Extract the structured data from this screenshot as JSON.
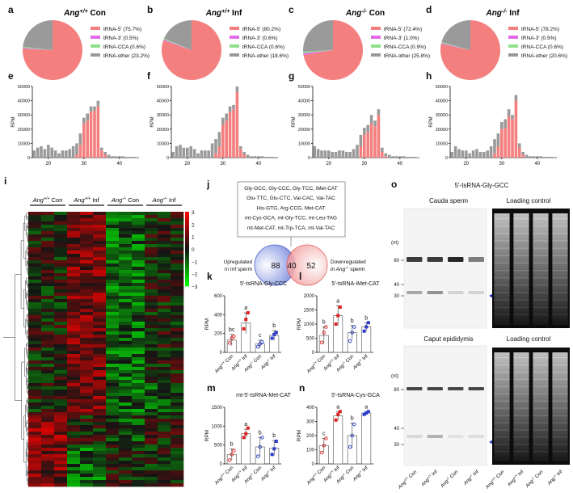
{
  "panel_letters": [
    "a",
    "b",
    "c",
    "d",
    "e",
    "f",
    "g",
    "h",
    "i",
    "j",
    "k",
    "l",
    "m",
    "n",
    "o"
  ],
  "colors": {
    "trna5": "#f47f7f",
    "trna3": "#e26ae6",
    "trnaCCA": "#8fe08a",
    "trnaOther": "#9a9a9a",
    "blue": "#2a3cc9",
    "red": "#e02020",
    "venn_left": "#7d8fe0",
    "venn_right": "#f39a9a"
  },
  "pies": [
    {
      "title_prefix": "Ang",
      "title_sup": "+/+",
      "title_suffix": " Con",
      "legend": [
        "tRNA-5' (75.7%)",
        "tRNA-3' (0.5%)",
        "tRNA-CCA (0.6%)",
        "tRNA-other (23.2%)"
      ],
      "values": [
        75.7,
        0.5,
        0.6,
        23.2
      ]
    },
    {
      "title_prefix": "Ang",
      "title_sup": "+/+",
      "title_suffix": " Inf",
      "legend": [
        "tRNA-5' (80.2%)",
        "tRNA-3' (0.6%)",
        "tRNA-CCA (0.6%)",
        "tRNA-other (18.6%)"
      ],
      "values": [
        80.2,
        0.6,
        0.6,
        18.6
      ]
    },
    {
      "title_prefix": "Ang",
      "title_sup": "-/-",
      "title_suffix": " Con",
      "legend": [
        "tRNA-5' (72.4%)",
        "tRNA-3' (1.0%)",
        "tRNA-CCA (0.9%)",
        "tRNA-other (25.8%)"
      ],
      "values": [
        72.4,
        1.0,
        0.9,
        25.8
      ]
    },
    {
      "title_prefix": "Ang",
      "title_sup": "-/-",
      "title_suffix": " Inf",
      "legend": [
        "tRNA-5' (78.2%)",
        "tRNA-3' (0.5%)",
        "tRNA-CCA (0.6%)",
        "tRNA-other (20.6%)"
      ],
      "values": [
        78.2,
        0.5,
        0.6,
        20.6
      ]
    }
  ],
  "hist": {
    "ylabel": "RPM",
    "yticks": [
      "0",
      "10000",
      "20000",
      "30000",
      "40000",
      "50000"
    ],
    "xticks": [
      "20",
      "30",
      "40"
    ],
    "lengths": [
      16,
      17,
      18,
      19,
      20,
      21,
      22,
      23,
      24,
      25,
      26,
      27,
      28,
      29,
      30,
      31,
      32,
      33,
      34,
      35,
      36,
      37,
      38,
      39,
      40,
      41,
      42,
      43,
      44,
      45
    ],
    "panels": [
      {
        "trna5": [
          0,
          0,
          0,
          0,
          0,
          0,
          0,
          0,
          0,
          0,
          0,
          0,
          2000,
          9000,
          24000,
          26000,
          32000,
          33000,
          36000,
          5000,
          2000,
          0,
          0,
          0,
          0,
          0,
          0,
          0,
          0,
          0
        ],
        "other": [
          5000,
          7000,
          8000,
          6000,
          9000,
          7000,
          5000,
          3000,
          5000,
          5000,
          6000,
          8000,
          8000,
          8000,
          4000,
          5000,
          4000,
          3000,
          4000,
          2000,
          2000,
          2000,
          1000,
          1000,
          1000,
          1000,
          500,
          500,
          500,
          300
        ]
      },
      {
        "trna5": [
          0,
          0,
          0,
          0,
          0,
          0,
          0,
          0,
          0,
          0,
          0,
          0,
          3000,
          8000,
          23000,
          26000,
          32000,
          34000,
          46000,
          6000,
          2000,
          0,
          0,
          0,
          0,
          0,
          0,
          0,
          0,
          0
        ],
        "other": [
          4000,
          8000,
          9000,
          7000,
          7000,
          8000,
          6000,
          3000,
          5000,
          5000,
          5000,
          10000,
          10000,
          10000,
          5000,
          5000,
          4000,
          3000,
          4000,
          2000,
          2000,
          2000,
          1000,
          1000,
          1000,
          1000,
          500,
          500,
          500,
          300
        ]
      },
      {
        "trna5": [
          0,
          0,
          0,
          0,
          0,
          0,
          0,
          0,
          0,
          0,
          0,
          0,
          0,
          8000,
          16000,
          18000,
          24000,
          22000,
          30000,
          4000,
          1000,
          0,
          0,
          0,
          0,
          0,
          0,
          0,
          0,
          0
        ],
        "other": [
          8000,
          6000,
          5000,
          5000,
          5000,
          4000,
          4000,
          5000,
          5000,
          4000,
          4000,
          6000,
          9000,
          8000,
          5000,
          5000,
          6000,
          4000,
          4000,
          3000,
          2000,
          2000,
          1000,
          1000,
          1000,
          1000,
          500,
          500,
          500,
          300
        ]
      },
      {
        "trna5": [
          0,
          0,
          0,
          0,
          0,
          0,
          0,
          0,
          0,
          0,
          0,
          0,
          3000,
          8000,
          20000,
          21000,
          29000,
          27000,
          40000,
          7000,
          2000,
          0,
          0,
          0,
          0,
          0,
          0,
          0,
          0,
          0
        ],
        "other": [
          4000,
          8000,
          6000,
          5000,
          5000,
          3000,
          5000,
          6000,
          4000,
          4000,
          5000,
          8000,
          10000,
          9000,
          5000,
          6000,
          5000,
          3000,
          4000,
          3000,
          2000,
          2000,
          1000,
          1000,
          1000,
          1000,
          500,
          500,
          500,
          300
        ]
      }
    ]
  },
  "heatmap": {
    "group_labels": [
      {
        "prefix": "Ang",
        "sup": "+/+",
        "suffix": " Con"
      },
      {
        "prefix": "Ang",
        "sup": "+/+",
        "suffix": " Inf"
      },
      {
        "prefix": "Ang",
        "sup": "-/-",
        "suffix": " Con"
      },
      {
        "prefix": "Ang",
        "sup": "-/-",
        "suffix": " Inf"
      }
    ],
    "scale_ticks": [
      "3",
      "2",
      "1",
      "0",
      "−1",
      "−2",
      "−3"
    ]
  },
  "venn": {
    "tsrna_list": [
      "Gly-GCC, Gly-CCC, Gly-TCC, iMet-CAT",
      "Glu-TTC, Glu-CTC, Val-CAC, Val-TAC",
      "His-GTG, Arg-CCG, Met-CAT",
      "mt-Cys-GCA, mt-Gly-TCC, mt-Leu-TAG",
      "mt-Met-CAT, mt-Trp-TCA, mt-Val-TAC"
    ],
    "left_count": "88",
    "overlap_count": "40",
    "right_count": "52",
    "left_label_1": "Upregulated",
    "left_label_2": "in Inf sperm",
    "right_label_1": "Downregulated",
    "right_label_2_prefix": "in Ang",
    "right_label_2_sup": "-/-",
    "right_label_2_suffix": " sperm"
  },
  "dots": {
    "ylabel": "RPM",
    "x_labels": [
      {
        "prefix": "Ang",
        "sup": "+/+",
        "suffix": " Con"
      },
      {
        "prefix": "Ang",
        "sup": "+/+",
        "suffix": " Inf"
      },
      {
        "prefix": "Ang",
        "sup": "-/-",
        "suffix": " Con"
      },
      {
        "prefix": "Ang",
        "sup": "-/-",
        "suffix": " Inf"
      }
    ],
    "panels": [
      {
        "letter": "k",
        "title": "5'-tsRNA-Gly-CCC",
        "yticks": [
          "0",
          "200",
          "400",
          "600"
        ],
        "ymax": 600,
        "means": [
          130,
          310,
          90,
          180
        ],
        "errs": [
          60,
          110,
          40,
          50
        ],
        "letters": [
          "bc",
          "a",
          "c",
          "b"
        ],
        "points": [
          [
            100,
            150,
            170
          ],
          [
            250,
            350,
            420
          ],
          [
            60,
            90,
            110
          ],
          [
            150,
            190,
            210
          ]
        ]
      },
      {
        "letter": "l",
        "title": "5'-tsRNA-iMet-CAT",
        "yticks": [
          "0",
          "500",
          "1000",
          "1500",
          "2000"
        ],
        "ymax": 2000,
        "means": [
          600,
          1300,
          700,
          900
        ],
        "errs": [
          300,
          350,
          250,
          150
        ],
        "letters": [
          "b",
          "a",
          "b",
          "b"
        ],
        "points": [
          [
            350,
            700,
            900
          ],
          [
            1000,
            1300,
            1600
          ],
          [
            400,
            700,
            900
          ],
          [
            750,
            900,
            1050
          ]
        ]
      },
      {
        "letter": "m",
        "title": "mt-5'-tsRNA-Met-CAT",
        "yticks": [
          "0",
          "500",
          "1000",
          "1500"
        ],
        "ymax": 1500,
        "means": [
          250,
          800,
          450,
          420
        ],
        "errs": [
          150,
          120,
          250,
          200
        ],
        "letters": [
          "b",
          "a",
          "b",
          "b"
        ],
        "points": [
          [
            100,
            250,
            350
          ],
          [
            700,
            800,
            950
          ],
          [
            200,
            450,
            700
          ],
          [
            250,
            400,
            600
          ]
        ]
      },
      {
        "letter": "n",
        "title": "5'-tsRNA-Cys-GCA",
        "yticks": [
          "0",
          "100",
          "200",
          "300",
          "400"
        ],
        "ymax": 400,
        "means": [
          130,
          340,
          200,
          360
        ],
        "errs": [
          50,
          30,
          90,
          10
        ],
        "letters": [
          "c",
          "a",
          "b",
          "a"
        ],
        "points": [
          [
            80,
            130,
            180
          ],
          [
            310,
            350,
            370
          ],
          [
            120,
            200,
            280
          ],
          [
            350,
            360,
            370
          ]
        ]
      }
    ]
  },
  "blot": {
    "main_title": "5'-tsRNA-Gly-GCC",
    "top_left_title": "Cauda sperm",
    "top_right_title": "Loading control",
    "bottom_left_title": "Caput epididymis",
    "bottom_right_title": "Loading control",
    "nt": "(nt)",
    "markers": [
      "80",
      "40",
      "30"
    ],
    "lane_labels": [
      {
        "prefix": "Ang",
        "sup": "+/+",
        "suffix": " Con"
      },
      {
        "prefix": "Ang",
        "sup": "+/+",
        "suffix": " Inf"
      },
      {
        "prefix": "Ang",
        "sup": "-/-",
        "suffix": " Con"
      },
      {
        "prefix": "Ang",
        "sup": "-/-",
        "suffix": " Inf"
      }
    ]
  }
}
